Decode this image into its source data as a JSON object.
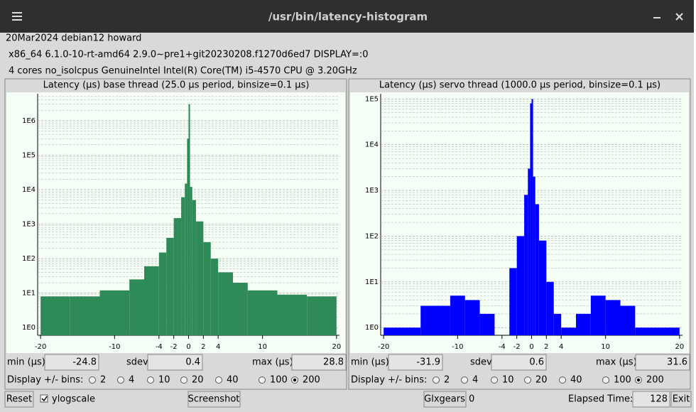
{
  "window": {
    "title": "/usr/bin/latency-histogram"
  },
  "info": [
    "20Mar2024 debian12 howard",
    "x86_64  6.1.0-10-rt-amd64  2.9.0~pre1+git20230208.f1270d6ed7  DISPLAY=:0",
    "4 cores  no_isolcpus   GenuineIntel  Intel(R) Core(TM) i5-4570 CPU @ 3.20GHz"
  ],
  "panels": [
    {
      "chart": {
        "type": "histogram",
        "title": "Latency (µs) base thread (25.0 µs period, binsize=0.1 µs)",
        "color": "#2e8b57",
        "log_y": true,
        "grid": true,
        "bins": [
          -20,
          -16,
          -12,
          -8,
          -6,
          -4,
          -3,
          -2,
          -1,
          -0.5,
          -0.2,
          0,
          0.2,
          0.5,
          1,
          2,
          3,
          4,
          6,
          8,
          12,
          16,
          20
        ],
        "counts": [
          8,
          8,
          12,
          25,
          60,
          150,
          400,
          1500,
          6000,
          15000,
          300000,
          3000000,
          12000,
          5000,
          1200,
          300,
          100,
          40,
          20,
          12,
          9,
          8
        ],
        "xlim": [
          -20.4,
          20.4
        ],
        "xticks": [
          -20,
          -10,
          -4,
          -2,
          0,
          2,
          4,
          10,
          20
        ],
        "ylim": [
          0.6,
          6000000
        ],
        "yticks": [
          {
            "value": 1,
            "label": "1E0"
          },
          {
            "value": 10,
            "label": "1E1"
          },
          {
            "value": 100,
            "label": "1E2"
          },
          {
            "value": 1000,
            "label": "1E3"
          },
          {
            "value": 10000,
            "label": "1E4"
          },
          {
            "value": 100000,
            "label": "1E5"
          },
          {
            "value": 1000000,
            "label": "1E6"
          }
        ]
      },
      "stats": {
        "min_label": "min (µs)",
        "min": -24.8,
        "sdev_label": "sdev",
        "sdev": 0.4,
        "max_label": "max (µs)",
        "max": 28.8
      },
      "bins_label": "Display +/- bins:",
      "bin_options": [
        2,
        4,
        10,
        20,
        40,
        100,
        200
      ],
      "selected": 6
    },
    {
      "chart": {
        "type": "histogram",
        "title": "Latency (µs) servo thread (1000.0 µs period, binsize=0.1 µs)",
        "color": "#0000ff",
        "log_y": true,
        "grid": true,
        "bins": [
          -20,
          -15,
          -11,
          -9,
          -7,
          -5,
          -3,
          -2,
          -1,
          -0.5,
          -0.2,
          0,
          0.2,
          0.5,
          1,
          2,
          3,
          4,
          6,
          8,
          10,
          12,
          14,
          20
        ],
        "counts": [
          1,
          3,
          5,
          4,
          2,
          0,
          20,
          100,
          800,
          3000,
          80000,
          100000,
          2000,
          500,
          80,
          10,
          2,
          1,
          2,
          5,
          4,
          3,
          1
        ],
        "xlim": [
          -20.4,
          20.4
        ],
        "xticks": [
          -20,
          -10,
          -4,
          -2,
          0,
          2,
          4,
          10,
          20
        ],
        "ylim": [
          0.68,
          130000
        ],
        "yticks": [
          {
            "value": 1,
            "label": "1E0"
          },
          {
            "value": 10,
            "label": "1E1"
          },
          {
            "value": 100,
            "label": "1E2"
          },
          {
            "value": 1000,
            "label": "1E3"
          },
          {
            "value": 10000,
            "label": "1E4"
          },
          {
            "value": 100000,
            "label": "1E5"
          }
        ]
      },
      "stats": {
        "min_label": "min (µs)",
        "min": -31.9,
        "sdev_label": "sdev",
        "sdev": 0.6,
        "max_label": "max (µs)",
        "max": 31.6
      },
      "bins_label": "Display +/- bins:",
      "bin_options": [
        2,
        4,
        10,
        20,
        40,
        100,
        200
      ],
      "selected": 6
    }
  ],
  "footer": {
    "reset": "Reset",
    "ylogscale": "ylogscale",
    "ylogscale_checked": true,
    "screenshot": "Screenshot",
    "glxgears": "Glxgears",
    "glxgears_count": 0,
    "elapsed_label": "Elapsed Time:",
    "elapsed": 128,
    "exit": "Exit"
  }
}
